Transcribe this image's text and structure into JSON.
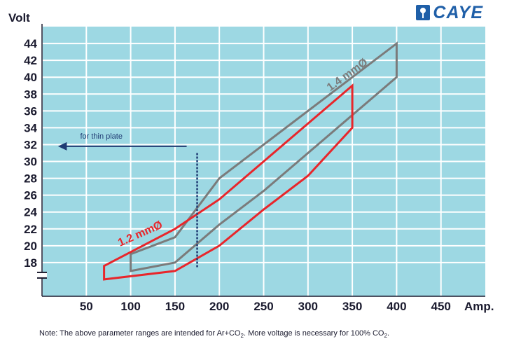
{
  "brand": {
    "name": "CAYE",
    "icon": "caye-logo-icon",
    "color": "#1f5fa8"
  },
  "note": {
    "part1": "Note: The above parameter ranges are intended for Ar+CO",
    "sub1": "2",
    "part2": ". More voltage is necessary for 100% CO",
    "sub2": "2",
    "part3": "."
  },
  "chart_data": {
    "type": "area",
    "ylabel": "Volt",
    "xlabel": "Amp.",
    "x_ticks": [
      50,
      100,
      150,
      200,
      250,
      300,
      350,
      400,
      450
    ],
    "y_ticks": [
      18,
      20,
      22,
      24,
      26,
      28,
      30,
      32,
      34,
      36,
      38,
      40,
      42,
      44
    ],
    "xlim": [
      0,
      500
    ],
    "ylim": [
      14,
      46
    ],
    "grid": true,
    "y_axis_break": true,
    "colors": {
      "background": "#9dd8e3",
      "grid": "#ffffff",
      "axis": "#1a1a2e"
    },
    "series": [
      {
        "name": "1.4 mmØ",
        "color": "#7b7b7b",
        "x": [
          100,
          150,
          200,
          400,
          400,
          350,
          300,
          250,
          200,
          150,
          100
        ],
        "y": [
          19,
          21,
          28,
          44,
          40,
          35.5,
          31,
          26.5,
          22.5,
          18,
          17
        ]
      },
      {
        "name": "1.2 mmØ",
        "color": "#e8262b",
        "x": [
          70,
          150,
          200,
          250,
          300,
          350,
          350,
          300,
          250,
          200,
          150,
          70
        ],
        "y": [
          17.6,
          22,
          25.5,
          30,
          34.5,
          39,
          34,
          28.3,
          24.3,
          20,
          17,
          16
        ]
      }
    ],
    "annotations": [
      {
        "text": "for thin plate",
        "type": "arrow-left",
        "color": "#1f3b73",
        "x": 175
      }
    ]
  }
}
